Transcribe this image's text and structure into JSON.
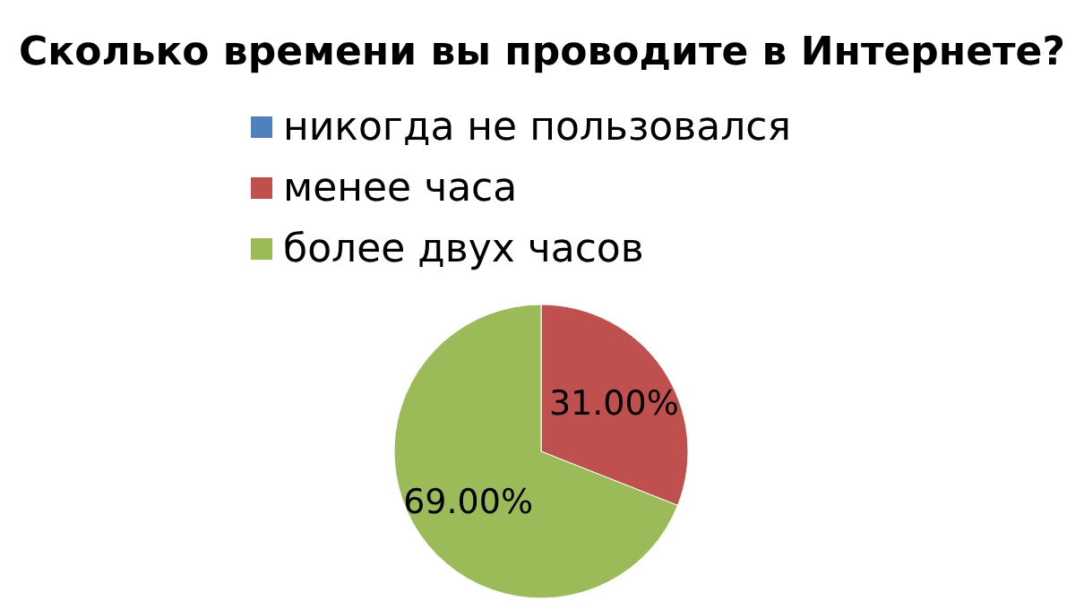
{
  "chart_data": {
    "type": "pie",
    "title": "Сколько времени вы проводите в Интернете?",
    "categories": [
      "никогда не пользовался",
      "менее часа",
      "более двух часов"
    ],
    "values": [
      0,
      31,
      69
    ],
    "colors": [
      "#4f81bd",
      "#c0504d",
      "#9bbb59"
    ],
    "value_labels": [
      null,
      "31.00%",
      "69.00%"
    ],
    "legend": "top"
  }
}
